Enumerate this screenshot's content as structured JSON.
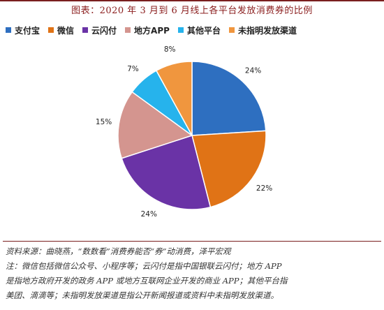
{
  "header": {
    "title": "图表：2020 年 3 月到 6 月线上各平台发放消费券的比例"
  },
  "legend": {
    "items": [
      {
        "label": "支付宝"
      },
      {
        "label": "微信"
      },
      {
        "label": "云闪付"
      },
      {
        "label": "地方APP"
      },
      {
        "label": "其他平台"
      },
      {
        "label": "未指明发放渠道"
      }
    ]
  },
  "chart_data": {
    "type": "pie",
    "title": "图表：2020 年 3 月到 6 月线上各平台发放消费券的比例",
    "categories": [
      "支付宝",
      "微信",
      "云闪付",
      "地方APP",
      "其他平台",
      "未指明发放渠道"
    ],
    "values": [
      24,
      22,
      24,
      15,
      7,
      8
    ],
    "labels": [
      "24%",
      "22%",
      "24%",
      "15%",
      "7%",
      "8%"
    ],
    "colors": [
      "#2e6fc0",
      "#e07316",
      "#6a33a6",
      "#d4958f",
      "#26b3ec",
      "#f0963e"
    ],
    "legend_position": "top",
    "start": "12 o'clock, clockwise"
  },
  "footnote": {
    "source": "资料来源：曲晓燕，“数数看”消费券能否“券”动消费，泽平宏观",
    "note_line1": "注：微信包括微信公众号、小程序等；云闪付是指中国银联云闪付；地方 APP",
    "note_line2": "是指地方政府开发的政务 APP 或地方互联网企业开发的商业 APP；其他平台指",
    "note_line3": "美团、滴滴等；未指明发放渠道是指公开新闻报道或资料中未指明发放渠道。"
  }
}
